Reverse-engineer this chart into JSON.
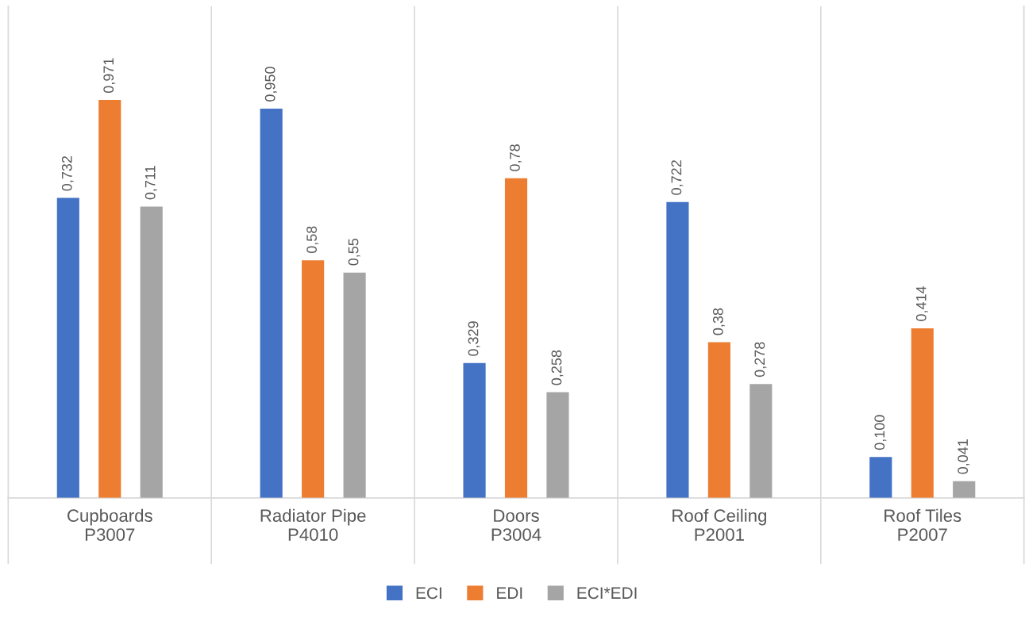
{
  "chart_data": {
    "type": "bar",
    "categories": [
      "Cupboards\nP3007",
      "Radiator Pipe\nP4010",
      "Doors\nP3004",
      "Roof Ceiling\nP2001",
      "Roof Tiles\nP2007"
    ],
    "series": [
      {
        "name": "ECI",
        "color": "#4472c4",
        "values": [
          0.732,
          0.95,
          0.329,
          0.722,
          0.1
        ],
        "value_labels": [
          "0,732",
          "0,950",
          "0,329",
          "0,722",
          "0,100"
        ]
      },
      {
        "name": "EDI",
        "color": "#ed7d31",
        "values": [
          0.971,
          0.58,
          0.78,
          0.38,
          0.414
        ],
        "value_labels": [
          "0,971",
          "0,58",
          "0,78",
          "0,38",
          "0,414"
        ]
      },
      {
        "name": "ECI*EDI",
        "color": "#a5a5a5",
        "values": [
          0.711,
          0.55,
          0.258,
          0.278,
          0.041
        ],
        "value_labels": [
          "0,711",
          "0,55",
          "0,258",
          "0,278",
          "0,041"
        ]
      }
    ],
    "ylim": [
      0,
      1.2
    ],
    "tick_labels": "x",
    "grid": "x",
    "legend": "bottom"
  }
}
